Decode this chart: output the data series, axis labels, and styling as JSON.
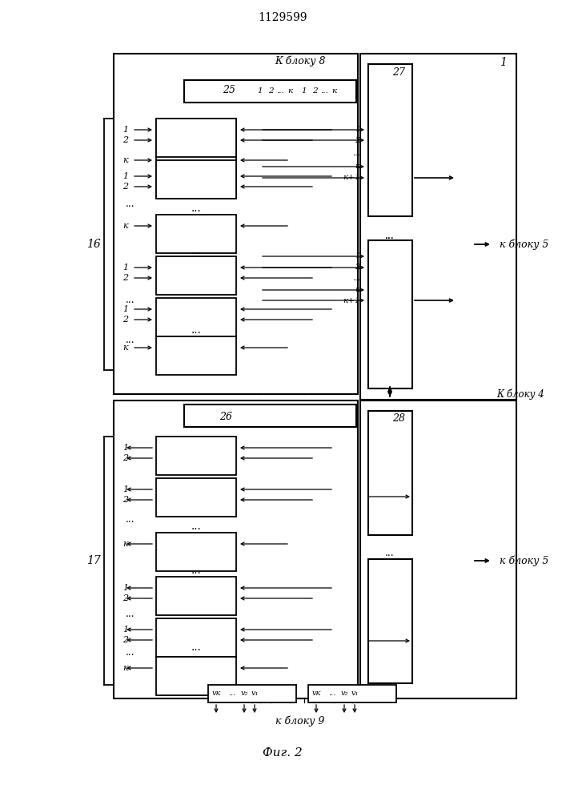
{
  "title": "1129599",
  "fig_label": "Фиг. 2",
  "lbl_blok8": "К блоку 8",
  "lbl_blok4": "К блоку 4",
  "lbl_blok5": "к блоку 5",
  "lbl_blok9": "к блоку 9",
  "bg": "#ffffff",
  "lc": "#000000",
  "figsize": [
    7.07,
    10.0
  ],
  "dpi": 100
}
